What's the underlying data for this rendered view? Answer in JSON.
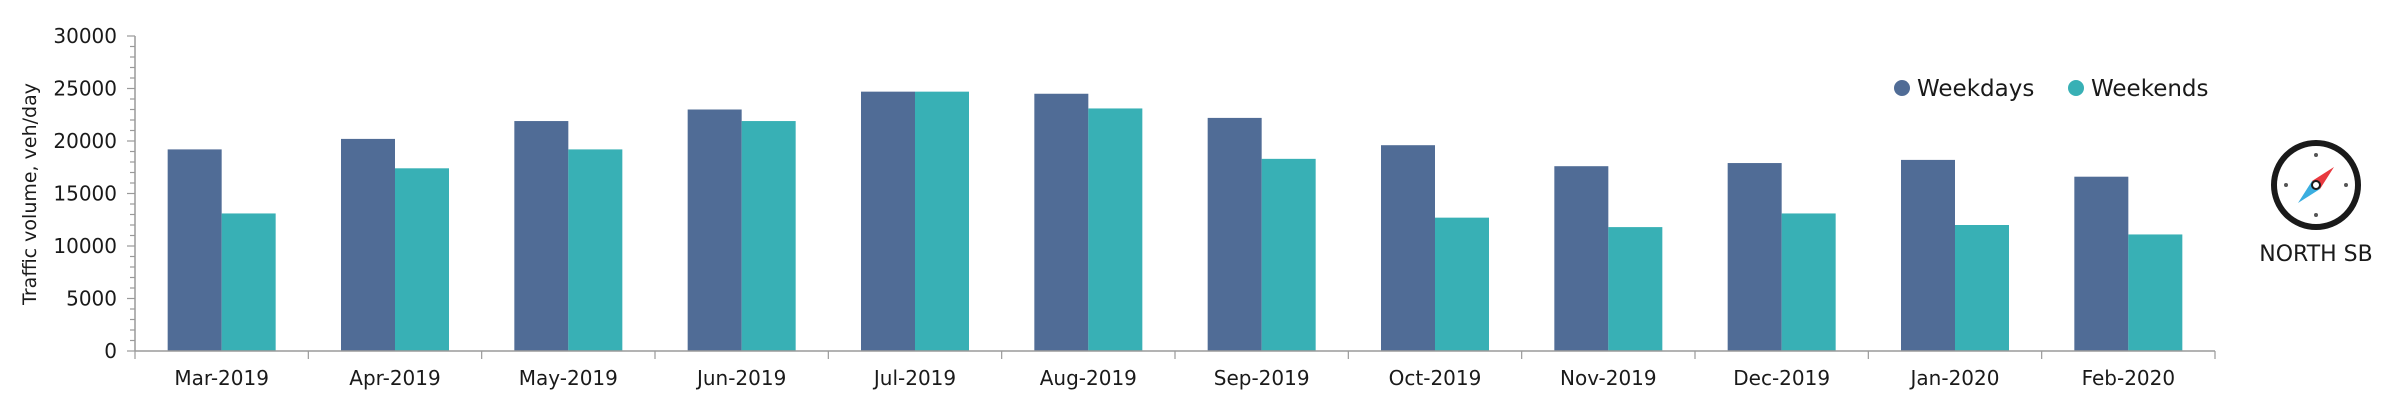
{
  "chart_data": {
    "type": "bar",
    "ylabel": "Traffic volume, veh/day",
    "ylim": [
      0,
      30000
    ],
    "yticks": [
      0,
      5000,
      10000,
      15000,
      20000,
      25000,
      30000
    ],
    "grid": false,
    "legend_position": "top-right",
    "categories": [
      "Mar-2019",
      "Apr-2019",
      "May-2019",
      "Jun-2019",
      "Jul-2019",
      "Aug-2019",
      "Sep-2019",
      "Oct-2019",
      "Nov-2019",
      "Dec-2019",
      "Jan-2020",
      "Feb-2020"
    ],
    "series": [
      {
        "name": "Weekdays",
        "color": "#506c96",
        "values": [
          19200,
          20200,
          21900,
          23000,
          24700,
          24500,
          22200,
          19600,
          17600,
          17900,
          18200,
          16600
        ]
      },
      {
        "name": "Weekends",
        "color": "#38b0b5",
        "values": [
          13100,
          17400,
          19200,
          21900,
          24700,
          23100,
          18300,
          12700,
          11800,
          13100,
          12000,
          11100
        ]
      }
    ]
  },
  "direction_badge": {
    "label": "NORTH SB",
    "icon": "compass-icon"
  }
}
